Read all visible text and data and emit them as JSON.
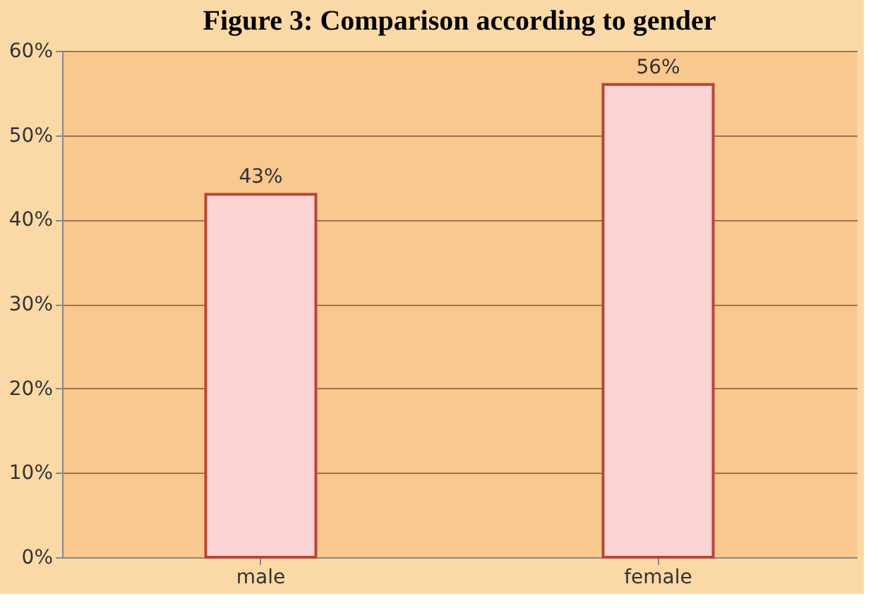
{
  "chart_data": {
    "type": "bar",
    "title": "Figure 3: Comparison according to gender",
    "categories": [
      "male",
      "female"
    ],
    "values": [
      43,
      56
    ],
    "color": "#fbd3d3",
    "value_labels": [
      "43%",
      "56%"
    ],
    "ylim": [
      0,
      60
    ],
    "yticks": [
      {
        "value": 0,
        "label": "0%"
      },
      {
        "value": 10,
        "label": "10%"
      },
      {
        "value": 20,
        "label": "20%"
      },
      {
        "value": 30,
        "label": "30%"
      },
      {
        "value": 40,
        "label": "40%"
      },
      {
        "value": 50,
        "label": "50%"
      },
      {
        "value": 60,
        "label": "60%"
      }
    ],
    "grid": "y"
  }
}
